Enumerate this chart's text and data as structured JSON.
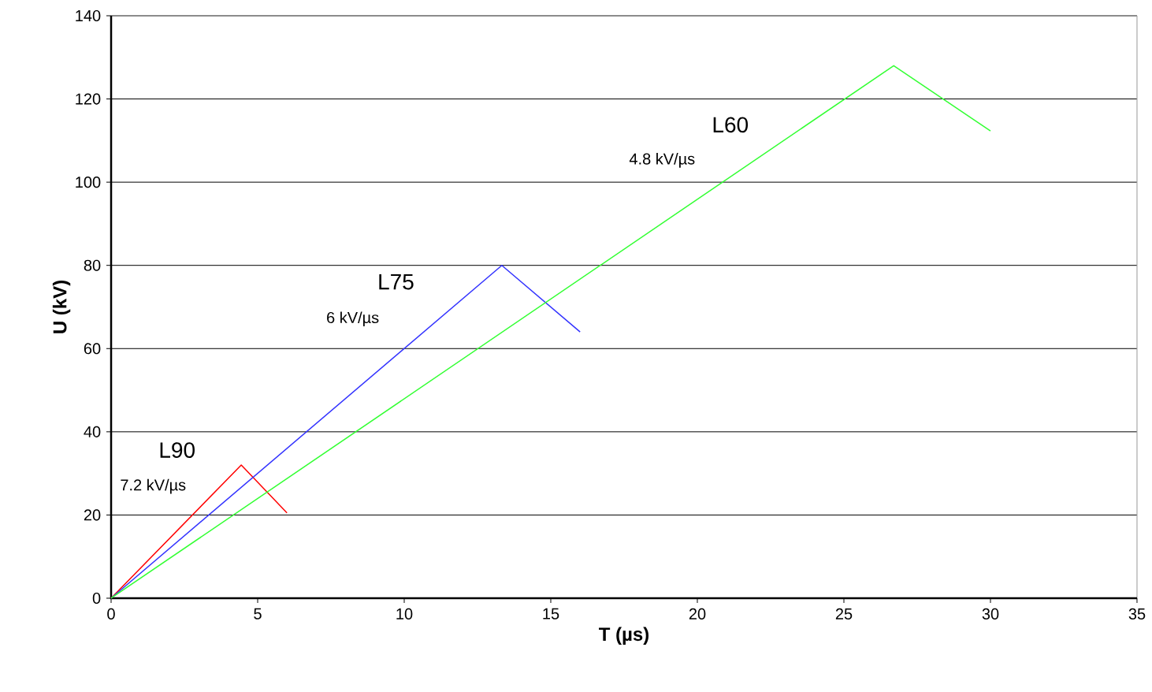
{
  "chart_data": {
    "type": "line",
    "xlabel": "T (µs)",
    "ylabel": "U (kV)",
    "xlim": [
      0,
      35
    ],
    "ylim": [
      0,
      140
    ],
    "xticks": [
      0,
      5,
      10,
      15,
      20,
      25,
      30,
      35
    ],
    "yticks": [
      0,
      20,
      40,
      60,
      80,
      100,
      120,
      140
    ],
    "grid": "y",
    "legend": false,
    "marker": "none",
    "line_style": "solid",
    "series": [
      {
        "name": "L90",
        "color": "#ff0000",
        "x": [
          0,
          4.44,
          6.0
        ],
        "values": [
          0,
          32,
          20.5
        ]
      },
      {
        "name": "L75",
        "color": "#3333ff",
        "x": [
          0,
          13.33,
          16.0
        ],
        "values": [
          0,
          80,
          64
        ]
      },
      {
        "name": "L60",
        "color": "#33ff33",
        "x": [
          0,
          26.7,
          30.0
        ],
        "values": [
          0,
          128,
          112.3
        ]
      }
    ],
    "annotations": [
      "7.2 kV/µs",
      "6 kV/µs",
      "4.8 kV/µs"
    ]
  }
}
